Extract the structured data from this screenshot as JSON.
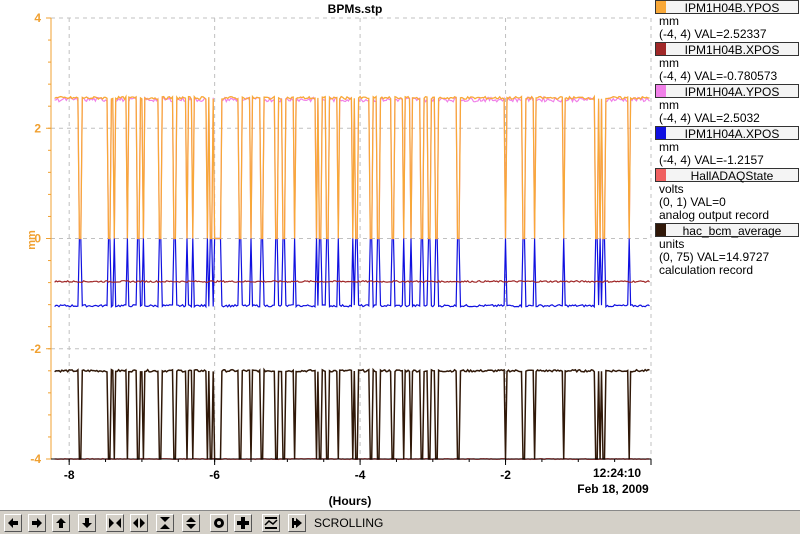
{
  "window": {
    "title": "BPMs.stp"
  },
  "axes": {
    "y_unit_label": "mm",
    "y_ticks": [
      "4",
      "2",
      "0",
      "-2",
      "-4"
    ],
    "x_ticks": [
      "-8",
      "-6",
      "-4",
      "-2"
    ],
    "x_label": "(Hours)",
    "time_label": "12:24:10",
    "date_label": "Feb 18, 2009",
    "colors": {
      "axis": "#f0a030",
      "grid": "#c0c0c0"
    }
  },
  "legend": [
    {
      "name": "IPM1H04B.YPOS",
      "color": "#f8a838",
      "lines": [
        "mm",
        "(-4, 4) VAL=2.52337"
      ]
    },
    {
      "name": "IPM1H04B.XPOS",
      "color": "#a02828",
      "lines": [
        "mm",
        "(-4, 4) VAL=-0.780573"
      ]
    },
    {
      "name": "IPM1H04A.YPOS",
      "color": "#f080e8",
      "lines": [
        "mm",
        "(-4, 4) VAL=2.5032"
      ]
    },
    {
      "name": "IPM1H04A.XPOS",
      "color": "#1010e0",
      "lines": [
        "mm",
        "(-4, 4) VAL=-1.2157"
      ]
    },
    {
      "name": "HallADAQState",
      "color": "#f06060",
      "lines": [
        "volts",
        "(0, 1) VAL=0",
        "analog output record"
      ]
    },
    {
      "name": "hac_bcm_average",
      "color": "#301808",
      "lines": [
        "units",
        "(0, 75) VAL=14.9727",
        "calculation record"
      ]
    }
  ],
  "chart_data": {
    "type": "line",
    "title": "BPMs.stp",
    "xlabel": "(Hours)",
    "ylabel": "mm",
    "xlim": [
      -8.25,
      0
    ],
    "ylim": [
      -4,
      4
    ],
    "grid": true,
    "legend_position": "right",
    "baselines": {
      "IPM1H04B.YPOS": 2.55,
      "IPM1H04A.YPOS": 2.52,
      "IPM1H04B.XPOS": -0.78,
      "IPM1H04A.XPOS": -1.22,
      "hac_bcm_average": -2.4,
      "HallADAQState": -4.0
    },
    "dropout_times_hours": [
      -7.85,
      -7.45,
      -7.38,
      -7.2,
      -7.05,
      -6.98,
      -6.75,
      -6.55,
      -6.38,
      -6.3,
      -6.1,
      -6.05,
      -6.0,
      -5.97,
      -5.93,
      -5.65,
      -5.5,
      -5.35,
      -5.15,
      -5.05,
      -4.9,
      -4.6,
      -4.55,
      -4.45,
      -4.3,
      -4.1,
      -4.05,
      -3.85,
      -3.75,
      -3.55,
      -3.4,
      -3.3,
      -3.15,
      -3.05,
      -2.95,
      -2.65,
      -2.0,
      -1.75,
      -1.6,
      -1.2,
      -0.75,
      -0.7,
      -0.65,
      -0.3
    ],
    "dropout_levels": {
      "IPM": 0.0,
      "hac_bcm_average": -4.0
    }
  },
  "toolbar": {
    "buttons": [
      "left-arrow-icon",
      "right-arrow-icon",
      "up-arrow-icon",
      "down-arrow-icon",
      "zoom-in-x-icon",
      "zoom-out-x-icon",
      "zoom-in-y-icon",
      "zoom-out-y-icon",
      "record-icon",
      "plus-icon",
      "autoscale-icon",
      "jump-to-end-icon"
    ],
    "status": "SCROLLING"
  }
}
